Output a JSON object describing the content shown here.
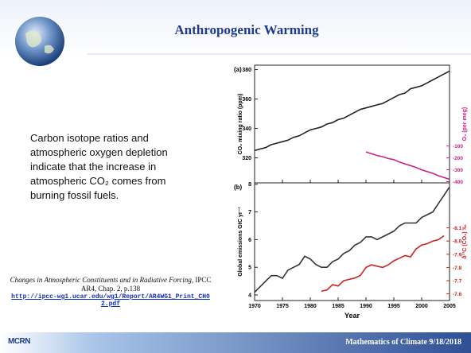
{
  "header": {
    "title": "Anthropogenic Warming"
  },
  "body": {
    "lines": [
      "Carbon isotope ratios and",
      "atmospheric oxygen depletion",
      "indicate that the increase in",
      "atmospheric CO₂ comes from",
      "burning fossil fuels."
    ]
  },
  "citation": {
    "work": "Changes in Atmospheric Constituents and in Radiative Forcing",
    "source": ", IPCC AR4, Chap. 2, p.138",
    "link": "http://ipcc-wg1.ucar.edu/wg1/Report/AR4WG1_Print_CH02.pdf"
  },
  "footer": {
    "logo": "MCRN",
    "text": "Mathematics of Climate  9/18/2018"
  },
  "figure": {
    "xlim": [
      1970,
      2005
    ],
    "xticks": [
      1970,
      1975,
      1980,
      1985,
      1990,
      1995,
      2000,
      2005
    ],
    "xlabel": "Year",
    "panels": [
      {
        "label": "(a)",
        "ylabel": "CO₂ mixing ratio (ppm)",
        "ylim": [
          303,
          383
        ],
        "yticks": [
          320,
          340,
          360,
          380
        ],
        "y2label": "O₂ (per meg)",
        "y2lim": [
          -410,
          580
        ],
        "y2ticks": [
          -100,
          -200,
          -300,
          -400
        ],
        "y2color": "#d0208a",
        "series": [
          {
            "color": "#222222",
            "x": [
              1970,
              1971,
              1972,
              1973,
              1974,
              1975,
              1976,
              1977,
              1978,
              1979,
              1980,
              1981,
              1982,
              1983,
              1984,
              1985,
              1986,
              1987,
              1988,
              1989,
              1990,
              1991,
              1992,
              1993,
              1994,
              1995,
              1996,
              1997,
              1998,
              1999,
              2000,
              2001,
              2002,
              2003,
              2004,
              2005
            ],
            "values": [
              325,
              326,
              327,
              329,
              330,
              331,
              332,
              334,
              335,
              337,
              339,
              340,
              341,
              343,
              344,
              346,
              347,
              349,
              351,
              353,
              354,
              355,
              356,
              357,
              359,
              361,
              363,
              364,
              367,
              368,
              369,
              371,
              373,
              375,
              377,
              379
            ]
          },
          {
            "color": "#d0208a",
            "axis": "y2",
            "x": [
              1990,
              1991,
              1992,
              1993,
              1994,
              1995,
              1996,
              1997,
              1998,
              1999,
              2000,
              2001,
              2002,
              2003,
              2004,
              2005
            ],
            "values": [
              -150,
              -165,
              -180,
              -190,
              -205,
              -215,
              -235,
              -250,
              -265,
              -280,
              -300,
              -315,
              -330,
              -350,
              -365,
              -380
            ]
          }
        ]
      },
      {
        "label": "(b)",
        "ylabel": "Global emissions GtC yr⁻¹",
        "ylim": [
          3.8,
          8.05
        ],
        "yticks": [
          4,
          5,
          6,
          7,
          8
        ],
        "y2label": "δ¹³C (CO₂) ‰",
        "y2lim": [
          -7.55,
          -8.44
        ],
        "y2ticks": [
          -8.1,
          {
            "value": -8,
            "label": "-8.0"
          },
          -7.9,
          -7.8,
          -7.7,
          -7.6
        ],
        "y2color": "#d02020",
        "series": [
          {
            "color": "#333333",
            "x": [
              1970,
              1971,
              1972,
              1973,
              1974,
              1975,
              1976,
              1977,
              1978,
              1979,
              1980,
              1981,
              1982,
              1983,
              1984,
              1985,
              1986,
              1987,
              1988,
              1989,
              1990,
              1991,
              1992,
              1993,
              1994,
              1995,
              1996,
              1997,
              1998,
              1999,
              2000,
              2001,
              2002,
              2003,
              2004,
              2005
            ],
            "values": [
              4.1,
              4.3,
              4.5,
              4.7,
              4.7,
              4.6,
              4.9,
              5.0,
              5.1,
              5.4,
              5.3,
              5.1,
              5.0,
              5.0,
              5.2,
              5.3,
              5.5,
              5.6,
              5.8,
              5.9,
              6.1,
              6.1,
              6.0,
              6.1,
              6.2,
              6.3,
              6.5,
              6.6,
              6.6,
              6.6,
              6.8,
              6.9,
              7.0,
              7.3,
              7.6,
              7.9
            ]
          },
          {
            "color": "#d02020",
            "axis": "y2",
            "x": [
              1982,
              1983,
              1984,
              1985,
              1986,
              1987,
              1988,
              1989,
              1990,
              1991,
              1992,
              1993,
              1994,
              1995,
              1996,
              1997,
              1998,
              1999,
              2000,
              2001,
              2002,
              2003,
              2004
            ],
            "values": [
              -7.62,
              -7.63,
              -7.67,
              -7.66,
              -7.7,
              -7.71,
              -7.72,
              -7.74,
              -7.8,
              -7.82,
              -7.81,
              -7.8,
              -7.82,
              -7.85,
              -7.87,
              -7.89,
              -7.88,
              -7.94,
              -7.97,
              -7.98,
              -8.0,
              -8.01,
              -8.04
            ]
          }
        ]
      }
    ]
  }
}
